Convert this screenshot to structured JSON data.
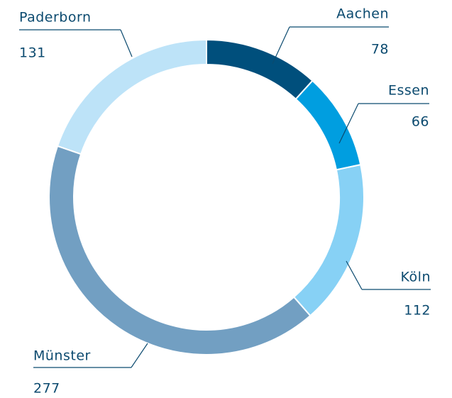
{
  "chart_data": {
    "type": "donut",
    "categories": [
      "Aachen",
      "Essen",
      "Köln",
      "Münster",
      "Paderborn"
    ],
    "values": [
      78,
      66,
      112,
      277,
      131
    ],
    "colors": [
      "#004f7c",
      "#009ee0",
      "#87d1f5",
      "#729fc2",
      "#bde3f8"
    ]
  }
}
